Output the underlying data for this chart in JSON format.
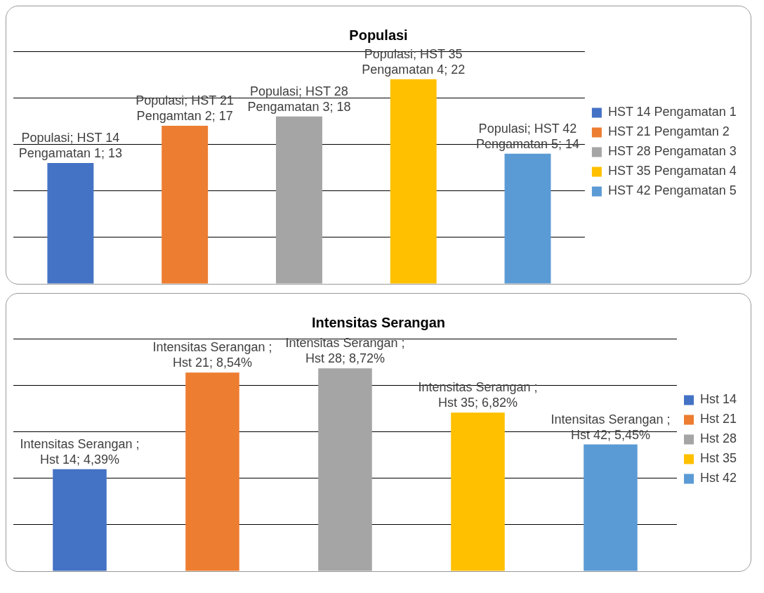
{
  "chart_data": [
    {
      "type": "bar",
      "title": "Populasi",
      "categories": [
        null,
        null,
        null,
        null,
        null
      ],
      "stacked": true,
      "series": [
        {
          "name": "HST 14 Pengamatan 1",
          "color": "#4472c4",
          "values": [
            13,
            null,
            null,
            null,
            null
          ],
          "value_labels": [
            "Populasi; HST 14 Pengamatan 1; 13",
            null,
            null,
            null,
            null
          ]
        },
        {
          "name": "HST 21 Pengamtan 2",
          "color": "#ed7d31",
          "values": [
            null,
            17,
            null,
            null,
            null
          ],
          "value_labels": [
            null,
            "Populasi; HST 21 Pengamtan 2; 17",
            null,
            null,
            null
          ]
        },
        {
          "name": "HST 28 Pengamatan 3",
          "color": "#a5a5a5",
          "values": [
            null,
            null,
            18,
            null,
            null
          ],
          "value_labels": [
            null,
            null,
            "Populasi; HST 28 Pengamatan 3; 18",
            null,
            null
          ]
        },
        {
          "name": "HST 35 Pengamatan 4",
          "color": "#ffc000",
          "values": [
            null,
            null,
            null,
            22,
            null
          ],
          "value_labels": [
            null,
            null,
            null,
            "Populasi; HST 35 Pengamatan 4; 22",
            null
          ]
        },
        {
          "name": "HST 42 Pengamatan 5",
          "color": "#5b9bd5",
          "values": [
            null,
            null,
            null,
            null,
            14
          ],
          "value_labels": [
            null,
            null,
            null,
            null,
            "Populasi; HST 42 Pengamatan 5; 14"
          ]
        }
      ],
      "ylim": [
        0,
        25
      ],
      "yticks": [
        {
          "value": 0,
          "label": null
        },
        {
          "value": 5,
          "label": null
        },
        {
          "value": 10,
          "label": null
        },
        {
          "value": 15,
          "label": null
        },
        {
          "value": 20,
          "label": null
        },
        {
          "value": 25,
          "label": null
        }
      ],
      "tick_labels": false,
      "grid": "y",
      "legend": "right"
    },
    {
      "type": "bar",
      "title": "Intensitas Serangan",
      "categories": [
        null,
        null,
        null,
        null,
        null
      ],
      "stacked": true,
      "series": [
        {
          "name": "Hst 14",
          "color": "#4472c4",
          "values": [
            4.39,
            null,
            null,
            null,
            null
          ],
          "value_labels": [
            "Intensitas Serangan ; Hst 14; 4,39%",
            null,
            null,
            null,
            null
          ]
        },
        {
          "name": "Hst 21",
          "color": "#ed7d31",
          "values": [
            null,
            8.54,
            null,
            null,
            null
          ],
          "value_labels": [
            null,
            "Intensitas Serangan ; Hst 21; 8,54%",
            null,
            null,
            null
          ]
        },
        {
          "name": "Hst 28",
          "color": "#a5a5a5",
          "values": [
            null,
            null,
            8.72,
            null,
            null
          ],
          "value_labels": [
            null,
            null,
            "Intensitas Serangan ; Hst 28; 8,72%",
            null,
            null
          ]
        },
        {
          "name": "Hst 35",
          "color": "#ffc000",
          "values": [
            null,
            null,
            null,
            6.82,
            null
          ],
          "value_labels": [
            null,
            null,
            null,
            "Intensitas Serangan ; Hst 35; 6,82%",
            null
          ]
        },
        {
          "name": "Hst 42",
          "color": "#5b9bd5",
          "values": [
            null,
            null,
            null,
            null,
            5.45
          ],
          "value_labels": [
            null,
            null,
            null,
            null,
            "Intensitas Serangan ; Hst 42; 5,45%"
          ]
        }
      ],
      "ylim": [
        0,
        10
      ],
      "yticks": [
        {
          "value": 0,
          "label": null
        },
        {
          "value": 2,
          "label": null
        },
        {
          "value": 4,
          "label": null
        },
        {
          "value": 6,
          "label": null
        },
        {
          "value": 8,
          "label": null
        },
        {
          "value": 10,
          "label": null
        }
      ],
      "tick_labels": false,
      "grid": "y",
      "legend": "right"
    }
  ]
}
